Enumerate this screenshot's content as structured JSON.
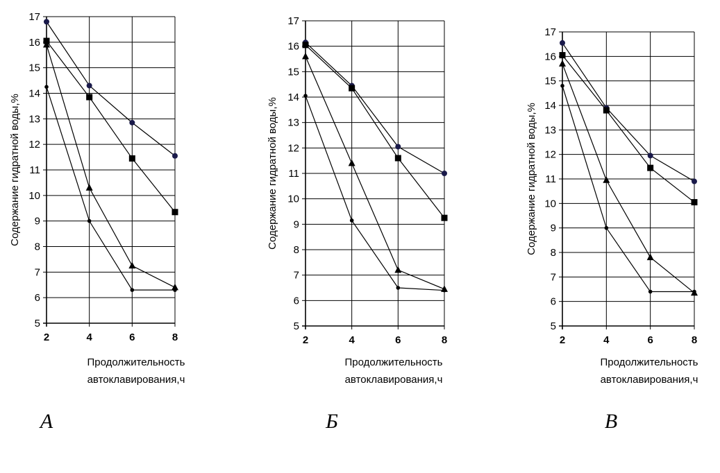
{
  "chart_data": [
    {
      "type": "line",
      "xlabel": [
        "Продолжительность",
        "автоклавирования,ч"
      ],
      "ylabel": "Содержание гидратной воды,%",
      "xticks": [
        "2",
        "4",
        "6",
        "8"
      ],
      "yticks": [
        "5",
        "6",
        "7",
        "8",
        "9",
        "10",
        "11",
        "12",
        "13",
        "14",
        "15",
        "16",
        "17"
      ],
      "x": [
        2,
        4,
        6,
        8
      ],
      "xlim": [
        2,
        8
      ],
      "ylim": [
        5,
        17
      ],
      "grid": true,
      "panel_label": "А",
      "series": [
        {
          "marker": "circle",
          "color": "#1a1a4a",
          "values": [
            16.8,
            14.3,
            12.85,
            11.55
          ]
        },
        {
          "marker": "square",
          "color": "#000000",
          "values": [
            16.05,
            13.85,
            11.45,
            9.35
          ]
        },
        {
          "marker": "triangle",
          "color": "#000000",
          "values": [
            15.9,
            10.3,
            7.25,
            6.4
          ]
        },
        {
          "marker": "dot",
          "color": "#000000",
          "values": [
            14.25,
            9.0,
            6.3,
            6.3
          ]
        }
      ]
    },
    {
      "type": "line",
      "xlabel": [
        "Продолжительность",
        "автоклавирования,ч"
      ],
      "ylabel": "Содержание гидратной воды,%",
      "xticks": [
        "2",
        "4",
        "6",
        "8"
      ],
      "yticks": [
        "5",
        "6",
        "7",
        "8",
        "9",
        "10",
        "11",
        "12",
        "13",
        "14",
        "15",
        "16",
        "17"
      ],
      "x": [
        2,
        4,
        6,
        8
      ],
      "xlim": [
        2,
        8
      ],
      "ylim": [
        5,
        17
      ],
      "grid": true,
      "panel_label": "Б",
      "series": [
        {
          "marker": "circle",
          "color": "#1a1a4a",
          "values": [
            16.15,
            14.45,
            12.05,
            11.0
          ]
        },
        {
          "marker": "square",
          "color": "#000000",
          "values": [
            16.05,
            14.35,
            11.6,
            9.25
          ]
        },
        {
          "marker": "triangle",
          "color": "#000000",
          "values": [
            15.6,
            11.4,
            7.2,
            6.45
          ]
        },
        {
          "marker": "dot",
          "color": "#000000",
          "values": [
            14.05,
            9.15,
            6.5,
            6.4
          ]
        }
      ]
    },
    {
      "type": "line",
      "xlabel": [
        "Продолжительность",
        "автоклавирования,ч"
      ],
      "ylabel": "Содержание гидратной воды,%",
      "xticks": [
        "2",
        "4",
        "6",
        "8"
      ],
      "yticks": [
        "5",
        "6",
        "7",
        "8",
        "9",
        "10",
        "11",
        "12",
        "13",
        "14",
        "15",
        "16",
        "17"
      ],
      "x": [
        2,
        4,
        6,
        8
      ],
      "xlim": [
        2,
        8
      ],
      "ylim": [
        5,
        17
      ],
      "grid": true,
      "panel_label": "В",
      "series": [
        {
          "marker": "circle",
          "color": "#1a1a4a",
          "values": [
            16.55,
            13.9,
            11.95,
            10.9
          ]
        },
        {
          "marker": "square",
          "color": "#000000",
          "values": [
            16.05,
            13.8,
            11.45,
            10.05
          ]
        },
        {
          "marker": "triangle",
          "color": "#000000",
          "values": [
            15.7,
            10.95,
            7.8,
            6.35
          ]
        },
        {
          "marker": "dot",
          "color": "#000000",
          "values": [
            14.8,
            9.0,
            6.4,
            6.4
          ]
        }
      ]
    }
  ]
}
